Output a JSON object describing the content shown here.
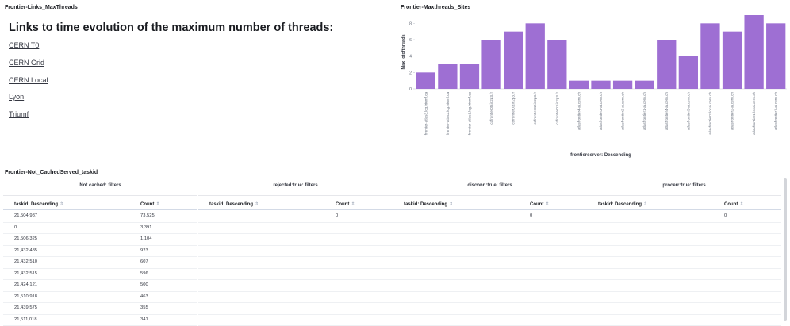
{
  "links_panel": {
    "title": "Frontier-Links_MaxThreads",
    "heading": "Links to time evolution of the maximum number of threads:",
    "links": [
      "CERN T0",
      "CERN Grid",
      "CERN Local",
      "Lyon",
      "Triumf"
    ]
  },
  "chart_panel": {
    "title": "Frontier-Maxthreads_Sites"
  },
  "chart_data": {
    "type": "bar",
    "title": "Frontier-Maxthreads_Sites",
    "xlabel": "frontierserver: Descending",
    "ylabel": "Max lotofthreads",
    "ylim": [
      0,
      9
    ],
    "yticks": [
      0,
      2,
      4,
      6,
      8
    ],
    "grid": false,
    "bar_color": "#9e6fd3",
    "categories": [
      "frontier-atlas3.lcg.triumf.ca",
      "frontier-atlas2.lcg.triumf.ca",
      "frontier-atlas1.lcg.triumf.ca",
      "ccfrontier05.in2p3.fr",
      "ccfrontier03.in2p3.fr",
      "ccfrontier02.in2p3.fr",
      "ccfrontier01.in2p3.fr",
      "atlasfrontier4-ai.cern.ch",
      "atlasfrontier3-ai.cern.ch",
      "atlasfrontier2-ai.cern.ch",
      "atlasfrontier1-ai.cern.ch",
      "atlasfrontier4-ai.cern.ch",
      "atlasfrontier3-ai.cern.ch",
      "atlasfrontier2-local.cern.ch",
      "atlasfrontier2-ai.cern.ch",
      "atlasfrontier1-local.cern.ch",
      "atlasfrontier1-ai.cern.ch"
    ],
    "values": [
      2,
      3,
      3,
      6,
      7,
      8,
      6,
      1,
      1,
      1,
      1,
      6,
      4,
      8,
      7,
      9,
      8
    ]
  },
  "tables_panel": {
    "title": "Frontier-Not_CachedServed_taskid",
    "tables": [
      {
        "title": "Not cached: filters",
        "col1": "taskid: Descending",
        "col2": "Count",
        "rows": [
          [
            "21,504,987",
            "73,525"
          ],
          [
            "0",
            "3,391"
          ],
          [
            "21,506,325",
            "1,104"
          ],
          [
            "21,432,485",
            "923"
          ],
          [
            "21,432,510",
            "607"
          ],
          [
            "21,432,515",
            "596"
          ],
          [
            "21,424,121",
            "500"
          ],
          [
            "21,510,918",
            "463"
          ],
          [
            "21,439,575",
            "355"
          ],
          [
            "21,511,018",
            "341"
          ]
        ]
      },
      {
        "title": "rejected:true: filters",
        "col1": "taskid: Descending",
        "col2": "Count",
        "rows": [
          [
            "",
            "0"
          ]
        ]
      },
      {
        "title": "disconn:true: filters",
        "col1": "taskid: Descending",
        "col2": "Count",
        "rows": [
          [
            "",
            "0"
          ]
        ]
      },
      {
        "title": "procerr:true: filters",
        "col1": "taskid: Descending",
        "col2": "Count",
        "rows": [
          [
            "",
            "0"
          ]
        ]
      }
    ],
    "sort_glyph": "⇕"
  }
}
